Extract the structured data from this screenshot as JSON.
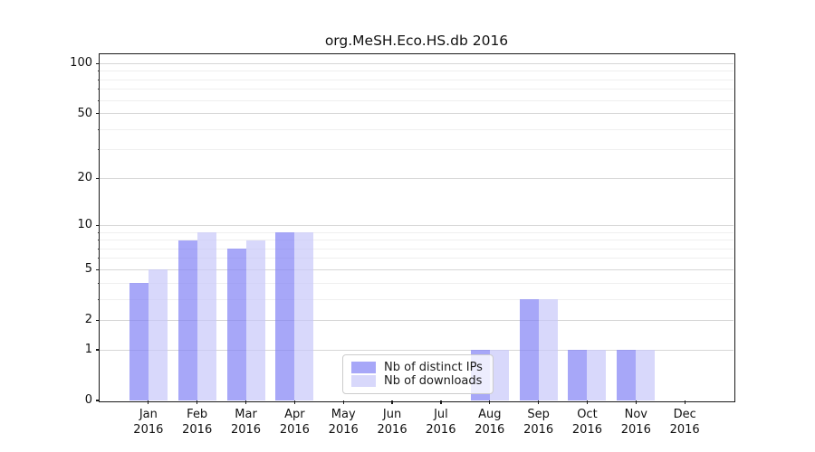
{
  "chart_data": {
    "type": "bar",
    "title": "org.MeSH.Eco.HS.db 2016",
    "categories": [
      "Jan",
      "Feb",
      "Mar",
      "Apr",
      "May",
      "Jun",
      "Jul",
      "Aug",
      "Sep",
      "Oct",
      "Nov",
      "Dec"
    ],
    "x_tick_year": "2016",
    "series": [
      {
        "name": "Nb of distinct IPs",
        "color": "#8282f5",
        "alpha": 0.7,
        "values": [
          4,
          8,
          7,
          9,
          0,
          0,
          0,
          1,
          3,
          1,
          1,
          0
        ]
      },
      {
        "name": "Nb of downloads",
        "color": "#c8c8fa",
        "alpha": 0.7,
        "values": [
          5,
          9,
          8,
          9,
          0,
          0,
          0,
          1,
          3,
          1,
          1,
          0
        ]
      }
    ],
    "y_scale": "log1p",
    "ylim": [
      0,
      114
    ],
    "y_ticks": [
      0,
      1,
      2,
      5,
      10,
      20,
      50,
      100
    ],
    "y_minor_ticks": [
      3,
      4,
      6,
      7,
      8,
      9,
      30,
      40,
      60,
      70,
      80,
      90
    ],
    "grid": true,
    "legend_position": "lower-center"
  }
}
